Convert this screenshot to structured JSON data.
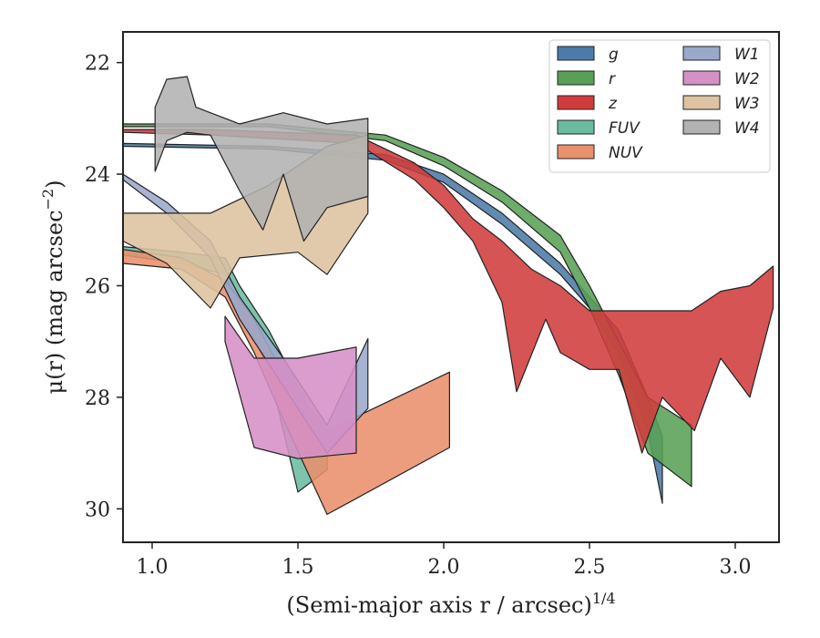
{
  "chart_data": {
    "type": "area",
    "xlabel": "(Semi-major axis r / arcsec)",
    "xlabel_sup": "1/4",
    "ylabel": "μ(r) (mag arcsec",
    "ylabel_sup": "−2",
    "ylabel_close": ")",
    "xlim": [
      0.9,
      3.15
    ],
    "ylim": [
      30.6,
      21.45
    ],
    "y_inverted": true,
    "xticks": [
      {
        "v": 1.0,
        "label": "1.0"
      },
      {
        "v": 1.5,
        "label": "1.5"
      },
      {
        "v": 2.0,
        "label": "2.0"
      },
      {
        "v": 2.5,
        "label": "2.5"
      },
      {
        "v": 3.0,
        "label": "3.0"
      }
    ],
    "yticks": [
      {
        "v": 22,
        "label": "22"
      },
      {
        "v": 24,
        "label": "24"
      },
      {
        "v": 26,
        "label": "26"
      },
      {
        "v": 28,
        "label": "28"
      },
      {
        "v": 30,
        "label": "30"
      }
    ],
    "legend_placement": "top-right",
    "legend_columns": 2,
    "series": [
      {
        "name": "g",
        "color": "#4c7ba9",
        "upper": [
          [
            0.9,
            23.45
          ],
          [
            1.4,
            23.5
          ],
          [
            1.8,
            23.65
          ],
          [
            2.0,
            24.0
          ],
          [
            2.2,
            24.7
          ],
          [
            2.4,
            25.6
          ],
          [
            2.5,
            26.2
          ],
          [
            2.6,
            26.8
          ],
          [
            2.7,
            28.0
          ],
          [
            2.75,
            28.7
          ]
        ],
        "lower": [
          [
            0.9,
            23.5
          ],
          [
            1.4,
            23.55
          ],
          [
            1.8,
            23.75
          ],
          [
            2.0,
            24.15
          ],
          [
            2.2,
            24.9
          ],
          [
            2.4,
            25.8
          ],
          [
            2.5,
            26.4
          ],
          [
            2.6,
            27.2
          ],
          [
            2.7,
            28.6
          ],
          [
            2.75,
            29.9
          ]
        ]
      },
      {
        "name": "r",
        "color": "#59a055",
        "upper": [
          [
            0.9,
            23.1
          ],
          [
            1.4,
            23.1
          ],
          [
            1.8,
            23.3
          ],
          [
            2.0,
            23.7
          ],
          [
            2.2,
            24.3
          ],
          [
            2.4,
            25.1
          ],
          [
            2.5,
            26.0
          ],
          [
            2.6,
            27.0
          ],
          [
            2.7,
            28.0
          ],
          [
            2.85,
            28.5
          ]
        ],
        "lower": [
          [
            0.9,
            23.15
          ],
          [
            1.4,
            23.15
          ],
          [
            1.8,
            23.4
          ],
          [
            2.0,
            23.85
          ],
          [
            2.2,
            24.5
          ],
          [
            2.4,
            25.4
          ],
          [
            2.5,
            26.4
          ],
          [
            2.6,
            27.6
          ],
          [
            2.7,
            29.0
          ],
          [
            2.85,
            29.6
          ]
        ]
      },
      {
        "name": "z",
        "color": "#d03c3c",
        "upper": [
          [
            0.9,
            23.2
          ],
          [
            1.2,
            23.2
          ],
          [
            1.7,
            23.3
          ],
          [
            1.9,
            23.8
          ],
          [
            2.0,
            24.2
          ],
          [
            2.1,
            24.8
          ],
          [
            2.2,
            25.2
          ],
          [
            2.3,
            25.7
          ],
          [
            2.4,
            26.0
          ],
          [
            2.5,
            26.45
          ],
          [
            2.85,
            26.45
          ],
          [
            2.95,
            26.1
          ],
          [
            3.05,
            26.0
          ],
          [
            3.13,
            25.65
          ]
        ],
        "lower": [
          [
            0.9,
            23.25
          ],
          [
            1.2,
            23.3
          ],
          [
            1.7,
            23.45
          ],
          [
            1.9,
            24.1
          ],
          [
            2.0,
            24.6
          ],
          [
            2.1,
            25.2
          ],
          [
            2.2,
            26.3
          ],
          [
            2.25,
            27.9
          ],
          [
            2.35,
            26.6
          ],
          [
            2.4,
            27.2
          ],
          [
            2.5,
            27.5
          ],
          [
            2.6,
            27.5
          ],
          [
            2.68,
            29.0
          ],
          [
            2.75,
            28.0
          ],
          [
            2.86,
            28.6
          ],
          [
            2.95,
            27.3
          ],
          [
            3.05,
            28.0
          ],
          [
            3.13,
            26.4
          ]
        ]
      },
      {
        "name": "FUV",
        "color": "#6cbba0",
        "upper": [
          [
            0.9,
            25.3
          ],
          [
            1.1,
            25.4
          ],
          [
            1.25,
            25.5
          ],
          [
            1.3,
            26.0
          ],
          [
            1.4,
            26.8
          ],
          [
            1.5,
            27.8
          ],
          [
            1.6,
            28.9
          ]
        ],
        "lower": [
          [
            0.9,
            25.45
          ],
          [
            1.1,
            25.6
          ],
          [
            1.25,
            25.8
          ],
          [
            1.3,
            26.4
          ],
          [
            1.4,
            27.5
          ],
          [
            1.5,
            29.7
          ],
          [
            1.6,
            29.3
          ]
        ]
      },
      {
        "name": "NUV",
        "color": "#e9906c",
        "upper": [
          [
            0.9,
            25.35
          ],
          [
            1.1,
            25.5
          ],
          [
            1.25,
            25.9
          ],
          [
            1.35,
            26.6
          ],
          [
            1.45,
            27.6
          ],
          [
            1.6,
            28.6
          ],
          [
            2.02,
            27.55
          ]
        ],
        "lower": [
          [
            0.9,
            25.6
          ],
          [
            1.1,
            25.7
          ],
          [
            1.25,
            26.2
          ],
          [
            1.35,
            27.2
          ],
          [
            1.45,
            28.4
          ],
          [
            1.6,
            30.1
          ],
          [
            2.02,
            28.9
          ]
        ]
      },
      {
        "name": "W1",
        "color": "#9aa8cb",
        "upper": [
          [
            0.9,
            24.0
          ],
          [
            1.05,
            24.5
          ],
          [
            1.2,
            25.2
          ],
          [
            1.3,
            26.2
          ],
          [
            1.45,
            27.3
          ],
          [
            1.6,
            28.5
          ],
          [
            1.74,
            26.95
          ]
        ],
        "lower": [
          [
            0.9,
            24.1
          ],
          [
            1.05,
            24.7
          ],
          [
            1.2,
            25.5
          ],
          [
            1.3,
            26.6
          ],
          [
            1.45,
            27.8
          ],
          [
            1.6,
            29.0
          ],
          [
            1.74,
            28.2
          ]
        ]
      },
      {
        "name": "W2",
        "color": "#d690c6",
        "upper": [
          [
            1.25,
            26.55
          ],
          [
            1.35,
            27.3
          ],
          [
            1.5,
            27.3
          ],
          [
            1.7,
            27.1
          ]
        ],
        "lower": [
          [
            1.25,
            27.0
          ],
          [
            1.35,
            28.9
          ],
          [
            1.5,
            29.1
          ],
          [
            1.7,
            29.0
          ]
        ]
      },
      {
        "name": "W3",
        "color": "#ddc3a1",
        "upper": [
          [
            0.9,
            24.7
          ],
          [
            1.05,
            24.7
          ],
          [
            1.2,
            24.7
          ],
          [
            1.4,
            24.2
          ],
          [
            1.6,
            23.5
          ],
          [
            1.74,
            23.3
          ]
        ],
        "lower": [
          [
            0.9,
            25.2
          ],
          [
            1.05,
            25.6
          ],
          [
            1.2,
            26.4
          ],
          [
            1.3,
            25.5
          ],
          [
            1.5,
            25.4
          ],
          [
            1.6,
            25.8
          ],
          [
            1.74,
            24.7
          ]
        ]
      },
      {
        "name": "W4",
        "color": "#b2b2b2",
        "upper": [
          [
            1.01,
            22.8
          ],
          [
            1.05,
            22.3
          ],
          [
            1.12,
            22.25
          ],
          [
            1.15,
            22.8
          ],
          [
            1.3,
            23.1
          ],
          [
            1.45,
            22.9
          ],
          [
            1.6,
            23.1
          ],
          [
            1.74,
            23.0
          ]
        ],
        "lower": [
          [
            1.01,
            23.95
          ],
          [
            1.05,
            23.4
          ],
          [
            1.12,
            23.25
          ],
          [
            1.2,
            23.3
          ],
          [
            1.3,
            24.3
          ],
          [
            1.38,
            25.0
          ],
          [
            1.45,
            24.0
          ],
          [
            1.52,
            25.2
          ],
          [
            1.6,
            24.6
          ],
          [
            1.74,
            24.4
          ]
        ]
      }
    ]
  }
}
